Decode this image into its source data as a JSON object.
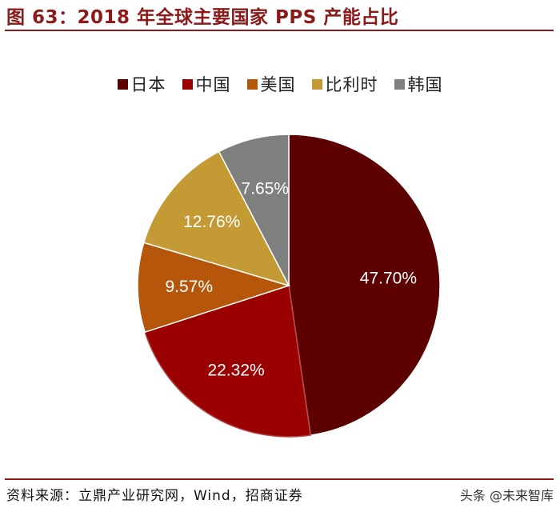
{
  "figure": {
    "title": "图 63：2018 年全球主要国家 PPS 产能占比"
  },
  "chart_data": {
    "type": "pie",
    "title": "2018 年全球主要国家 PPS 产能占比",
    "legend_position": "top",
    "slices": [
      {
        "name": "日本",
        "value": 47.7,
        "label": "47.70%",
        "color": "#5c0000"
      },
      {
        "name": "中国",
        "value": 22.32,
        "label": "22.32%",
        "color": "#9b0000"
      },
      {
        "name": "美国",
        "value": 9.57,
        "label": "9.57%",
        "color": "#b5560b"
      },
      {
        "name": "比利时",
        "value": 12.76,
        "label": "12.76%",
        "color": "#c49a35"
      },
      {
        "name": "韩国",
        "value": 7.65,
        "label": "7.65%",
        "color": "#7f7f7f"
      }
    ]
  },
  "source": {
    "text": "资料来源：立鼎产业研究网，Wind，招商证券"
  },
  "watermark": {
    "text": "头条 @未来智库"
  }
}
